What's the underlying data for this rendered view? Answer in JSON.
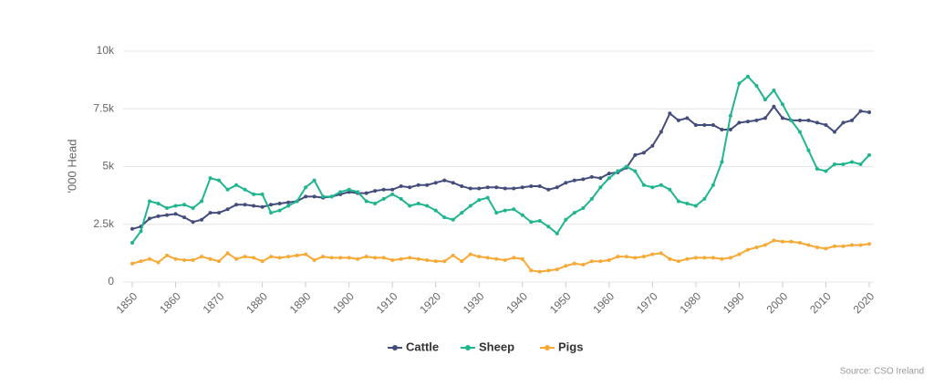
{
  "chart_data": {
    "type": "line",
    "y_label": "'000 Head",
    "source": "Source: CSO Ireland",
    "x": [
      1850,
      1852,
      1854,
      1856,
      1858,
      1860,
      1862,
      1864,
      1866,
      1868,
      1870,
      1872,
      1874,
      1876,
      1878,
      1880,
      1882,
      1884,
      1886,
      1888,
      1890,
      1892,
      1894,
      1896,
      1898,
      1900,
      1902,
      1904,
      1906,
      1908,
      1910,
      1912,
      1914,
      1916,
      1918,
      1920,
      1922,
      1924,
      1926,
      1928,
      1930,
      1932,
      1934,
      1936,
      1938,
      1940,
      1942,
      1944,
      1946,
      1948,
      1950,
      1952,
      1954,
      1956,
      1958,
      1960,
      1962,
      1964,
      1966,
      1968,
      1970,
      1972,
      1974,
      1976,
      1978,
      1980,
      1982,
      1984,
      1986,
      1988,
      1990,
      1992,
      1994,
      1996,
      1998,
      2000,
      2002,
      2004,
      2006,
      2008,
      2010,
      2012,
      2014,
      2016,
      2018,
      2020
    ],
    "series": [
      {
        "name": "Cattle",
        "color": "#434d7c",
        "values": [
          2300,
          2400,
          2750,
          2850,
          2900,
          2950,
          2800,
          2600,
          2700,
          3000,
          3000,
          3150,
          3350,
          3350,
          3300,
          3250,
          3350,
          3400,
          3450,
          3500,
          3700,
          3700,
          3650,
          3700,
          3800,
          3900,
          3850,
          3850,
          3950,
          4000,
          4000,
          4150,
          4100,
          4200,
          4200,
          4300,
          4400,
          4300,
          4150,
          4050,
          4050,
          4100,
          4100,
          4050,
          4050,
          4100,
          4150,
          4150,
          4000,
          4100,
          4300,
          4400,
          4450,
          4550,
          4500,
          4700,
          4750,
          4950,
          5500,
          5600,
          5900,
          6500,
          7300,
          7000,
          7100,
          6800,
          6800,
          6800,
          6600,
          6600,
          6900,
          6950,
          7000,
          7100,
          7600,
          7100,
          7000,
          7000,
          7000,
          6900,
          6800,
          6500,
          6900,
          7000,
          7400,
          7350
        ]
      },
      {
        "name": "Sheep",
        "color": "#1fb58f",
        "values": [
          1700,
          2200,
          3500,
          3400,
          3200,
          3300,
          3350,
          3200,
          3500,
          4500,
          4400,
          4000,
          4200,
          4000,
          3800,
          3800,
          3000,
          3100,
          3300,
          3500,
          4100,
          4400,
          3700,
          3700,
          3900,
          4000,
          3900,
          3500,
          3400,
          3600,
          3800,
          3600,
          3300,
          3400,
          3300,
          3100,
          2800,
          2700,
          3000,
          3300,
          3550,
          3650,
          3000,
          3100,
          3150,
          2900,
          2600,
          2650,
          2400,
          2100,
          2700,
          3000,
          3200,
          3600,
          4100,
          4500,
          4800,
          5000,
          4800,
          4200,
          4100,
          4200,
          4000,
          3500,
          3400,
          3300,
          3600,
          4200,
          5200,
          7200,
          8600,
          8900,
          8500,
          7900,
          8300,
          7700,
          7000,
          6500,
          5700,
          4900,
          4800,
          5100,
          5100,
          5200,
          5100,
          5500
        ]
      },
      {
        "name": "Pigs",
        "color": "#f7a935",
        "values": [
          800,
          900,
          1000,
          850,
          1150,
          1000,
          950,
          950,
          1100,
          1000,
          900,
          1250,
          1000,
          1100,
          1050,
          900,
          1100,
          1050,
          1100,
          1150,
          1200,
          950,
          1100,
          1050,
          1050,
          1050,
          1000,
          1100,
          1050,
          1050,
          950,
          1000,
          1050,
          1000,
          950,
          900,
          900,
          1150,
          900,
          1200,
          1100,
          1050,
          1000,
          950,
          1050,
          1000,
          500,
          450,
          500,
          550,
          700,
          800,
          750,
          900,
          900,
          950,
          1100,
          1100,
          1050,
          1100,
          1200,
          1250,
          1000,
          900,
          1000,
          1050,
          1050,
          1050,
          1000,
          1050,
          1200,
          1400,
          1500,
          1600,
          1800,
          1750,
          1750,
          1700,
          1600,
          1500,
          1450,
          1550,
          1550,
          1600,
          1600,
          1650
        ]
      }
    ],
    "xlim": [
      1850,
      2020
    ],
    "xticks": [
      1850,
      1860,
      1870,
      1880,
      1890,
      1900,
      1910,
      1920,
      1930,
      1940,
      1950,
      1960,
      1970,
      1980,
      1990,
      2000,
      2010,
      2020
    ],
    "ylim": [
      0,
      10000
    ],
    "yticks": [
      0,
      {
        "value": 2500,
        "label": "2.5k"
      },
      {
        "value": 5000,
        "label": "5k"
      },
      {
        "value": 7500,
        "label": "7.5k"
      },
      {
        "value": 10000,
        "label": "10k"
      }
    ],
    "grid": true
  }
}
